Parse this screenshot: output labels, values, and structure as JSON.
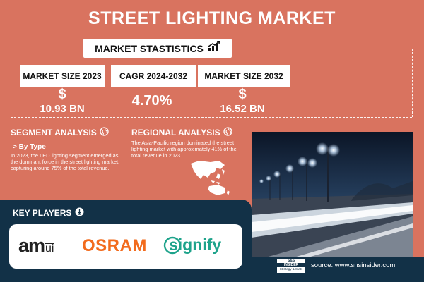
{
  "title": "STREET LIGHTING MARKET",
  "market_statistics": {
    "label": "MARKET STASTISTICS",
    "icon": "chart-growth-icon",
    "cards": [
      {
        "label": "MARKET SIZE 2023",
        "currency": "$",
        "value": "10.93 BN"
      },
      {
        "label": "CAGR 2024-2032",
        "currency": "",
        "value": "4.70%"
      },
      {
        "label": "MARKET SIZE 2032",
        "currency": "$",
        "value": "16.52 BN"
      }
    ]
  },
  "segment_analysis": {
    "title": "SEGMENT ANALYSIS",
    "icon": "globe-icon",
    "subtitle": "> By Type",
    "text": "In 2023, the LED lighting segment emerged as the dominant force in the street lighting market, capturing around 75% of the total revenue."
  },
  "regional_analysis": {
    "title": "REGIONAL ANALYSIS",
    "icon": "globe-icon",
    "text": "The Asia-Pacific region dominated the street lighting market with approximately 41% of the total revenue in 2023",
    "map_icon": "asia-pacific-map-icon"
  },
  "key_players": {
    "title": "KEY PLAYERS",
    "icon": "download-circle-icon",
    "logos": [
      {
        "name": "am",
        "suffix": "ui"
      },
      {
        "name": "OSRAM"
      },
      {
        "name": "signify"
      }
    ]
  },
  "source": {
    "text": "source: www.snsinsider.com",
    "logo_top": "S&S",
    "logo_middle": "INSIDER",
    "logo_bottom": "Strategy & Stats"
  },
  "colors": {
    "background": "#d9735f",
    "navy": "#123147",
    "white": "#ffffff",
    "signify_green": "#1ea38b",
    "osram_orange": "#f26b1d"
  }
}
